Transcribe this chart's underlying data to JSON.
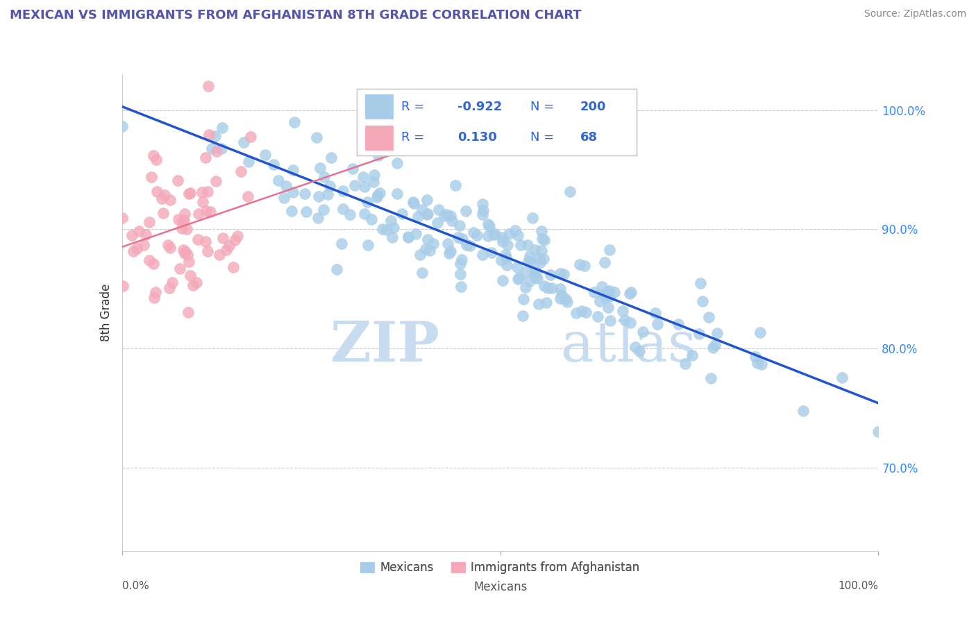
{
  "title": "MEXICAN VS IMMIGRANTS FROM AFGHANISTAN 8TH GRADE CORRELATION CHART",
  "source": "Source: ZipAtlas.com",
  "ylabel": "8th Grade",
  "watermark_zip": "ZIP",
  "watermark_atlas": "atlas",
  "watermark_color": "#C8DCF0",
  "r1": -0.922,
  "n1": 200,
  "r2": 0.13,
  "n2": 68,
  "seed": 42,
  "blue_dot_color": "#A8CDE8",
  "pink_dot_color": "#F4A8B8",
  "blue_line_color": "#2255CC",
  "pink_line_color": "#E87090",
  "legend_text_color": "#3366CC",
  "legend_r_color": "#3366CC",
  "title_color": "#5555AA",
  "ylabel_color": "#333333",
  "ytick_color": "#3388FF",
  "grid_color": "#CCCCCC",
  "figsize": [
    14.06,
    8.92
  ],
  "dpi": 100,
  "xlim": [
    0.0,
    1.0
  ],
  "ylim": [
    0.63,
    1.03
  ],
  "yticks": [
    0.7,
    0.8,
    0.9,
    1.0
  ],
  "ytick_labels": [
    "70.0%",
    "80.0%",
    "90.0%",
    "100.0%"
  ]
}
